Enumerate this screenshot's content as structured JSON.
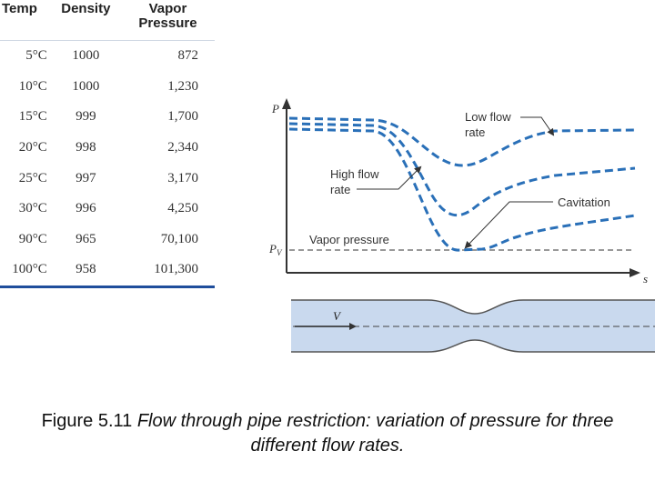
{
  "table": {
    "headers": {
      "temp": "Temp",
      "density": "Density",
      "vapor_line1": "Vapor",
      "vapor_line2": "Pressure"
    },
    "rows": [
      {
        "temp": "5°C",
        "density": "1000",
        "vapor": "872"
      },
      {
        "temp": "10°C",
        "density": "1000",
        "vapor": "1,230"
      },
      {
        "temp": "15°C",
        "density": "999",
        "vapor": "1,700"
      },
      {
        "temp": "20°C",
        "density": "998",
        "vapor": "2,340"
      },
      {
        "temp": "25°C",
        "density": "997",
        "vapor": "3,170"
      },
      {
        "temp": "30°C",
        "density": "996",
        "vapor": "4,250"
      },
      {
        "temp": "90°C",
        "density": "965",
        "vapor": "70,100"
      },
      {
        "temp": "100°C",
        "density": "958",
        "vapor": "101,300"
      }
    ]
  },
  "figure": {
    "y_axis_letter": "P",
    "pv_letter": "P",
    "pv_subscript": "V",
    "x_axis_letter": "s",
    "velocity_letter": "V",
    "labels": {
      "low_flow_1": "Low flow",
      "low_flow_2": "rate",
      "high_flow_1": "High flow",
      "high_flow_2": "rate",
      "cavitation": "Cavitation",
      "vapor_pressure": "Vapor pressure"
    },
    "colors": {
      "curve": "#2a70b8",
      "pipe_fill": "#c9d9ee",
      "axis": "#333333"
    }
  },
  "caption": {
    "label": "Figure 5.11",
    "text": "Flow through pipe restriction: variation of pressure for three different flow rates."
  }
}
